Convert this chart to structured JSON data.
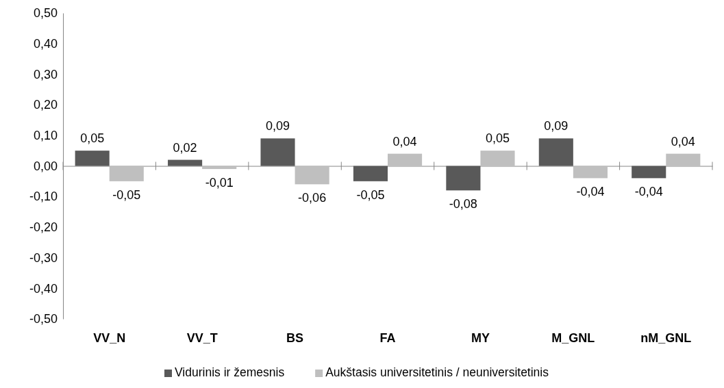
{
  "chart_data": {
    "type": "bar",
    "categories": [
      "VV_N",
      "VV_T",
      "BS",
      "FA",
      "MY",
      "M_GNL",
      "nM_GNL"
    ],
    "series": [
      {
        "name": "Vidurinis ir žemesnis",
        "color": "#595959",
        "values": [
          0.05,
          0.02,
          0.09,
          -0.05,
          -0.08,
          0.09,
          -0.04
        ],
        "value_labels": [
          "0,05",
          "0,02",
          "0,09",
          "-0,05",
          "-0,08",
          "0,09",
          "-0,04"
        ]
      },
      {
        "name": "Aukštasis universitetinis / neuniversitetinis",
        "color": "#bfbfbf",
        "values": [
          -0.05,
          -0.01,
          -0.06,
          0.04,
          0.05,
          -0.04,
          0.04
        ],
        "value_labels": [
          "-0,05",
          "-0,01",
          "-0,06",
          "0,04",
          "0,05",
          "-0,04",
          "0,04"
        ]
      }
    ],
    "ylim": [
      -0.5,
      0.5
    ],
    "yticks": [
      {
        "value": -0.5,
        "label": "-0,50"
      },
      {
        "value": -0.4,
        "label": "-0,40"
      },
      {
        "value": -0.3,
        "label": "-0,30"
      },
      {
        "value": -0.2,
        "label": "-0,20"
      },
      {
        "value": -0.1,
        "label": "-0,10"
      },
      {
        "value": 0,
        "label": "0,00"
      },
      {
        "value": 0.1,
        "label": "0,10"
      },
      {
        "value": 0.2,
        "label": "0,20"
      },
      {
        "value": 0.3,
        "label": "0,30"
      },
      {
        "value": 0.4,
        "label": "0,40"
      },
      {
        "value": 0.5,
        "label": "0,50"
      }
    ],
    "legend": "bottom"
  }
}
